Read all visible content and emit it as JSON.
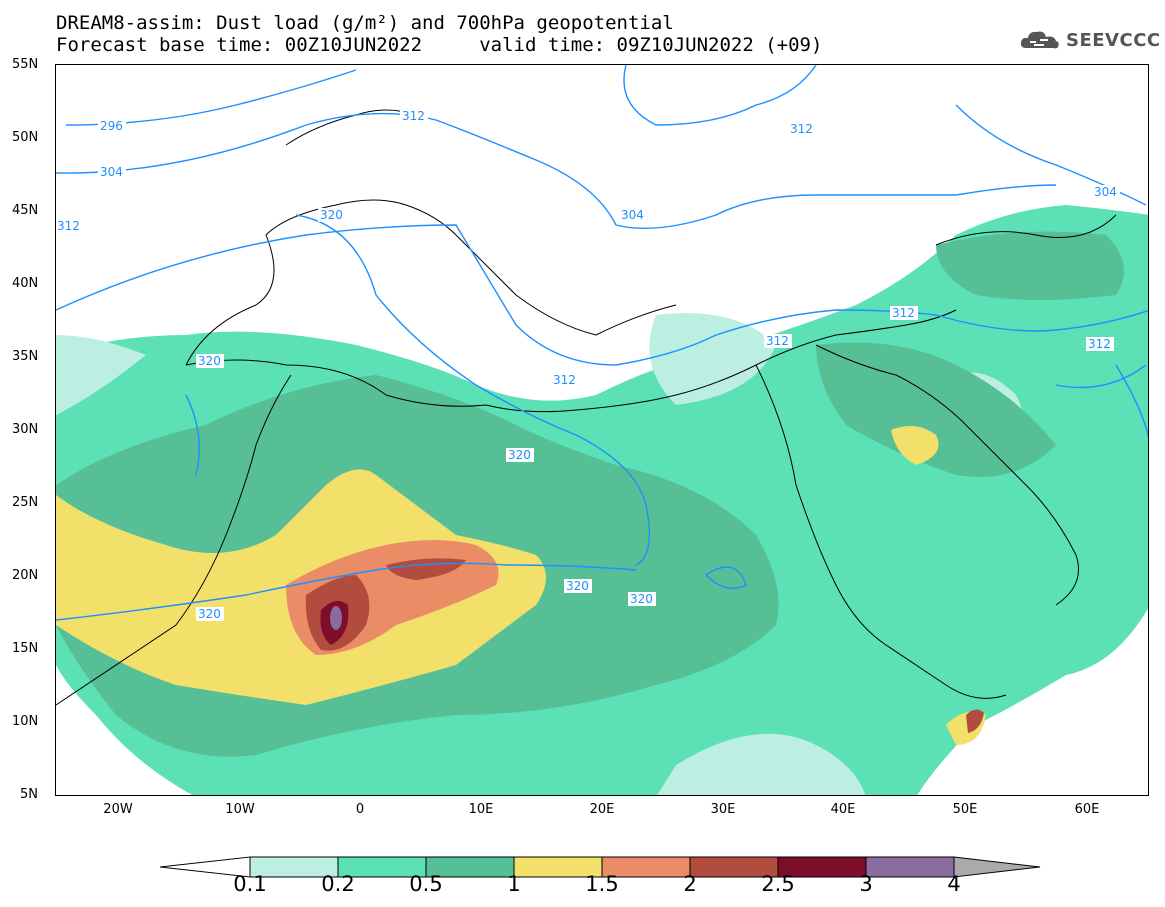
{
  "header": {
    "title_line1": "DREAM8-assim: Dust load (g/m²) and 700hPa geopotential",
    "title_line2": "Forecast base time: 00Z10JUN2022     valid time: 09Z10JUN2022 (+09)",
    "logo_text": "SEEVCCC"
  },
  "axes": {
    "lat_labels": [
      "55N",
      "50N",
      "45N",
      "40N",
      "35N",
      "30N",
      "25N",
      "20N",
      "15N",
      "10N",
      "5N"
    ],
    "lon_labels": [
      "20W",
      "10W",
      "0",
      "10E",
      "20E",
      "30E",
      "40E",
      "50E",
      "60E"
    ]
  },
  "colorbar": {
    "ticks": [
      "0.1",
      "0.2",
      "0.5",
      "1",
      "1.5",
      "2",
      "2.5",
      "3",
      "4"
    ],
    "colors": [
      "#bdeee2",
      "#5ce0b6",
      "#56bf96",
      "#f3e06a",
      "#ea8c66",
      "#b24c3e",
      "#7c0e2a",
      "#8b6c9e",
      "#aaaaaa"
    ]
  },
  "contours": {
    "labels": [
      "296",
      "304",
      "312",
      "320",
      "312",
      "304",
      "312",
      "320",
      "320",
      "320",
      "320",
      "320",
      "312",
      "312",
      "312",
      "312",
      "304"
    ]
  },
  "colors": {
    "contour_line": "#1e90ff",
    "label_text": "#1e90ff"
  }
}
